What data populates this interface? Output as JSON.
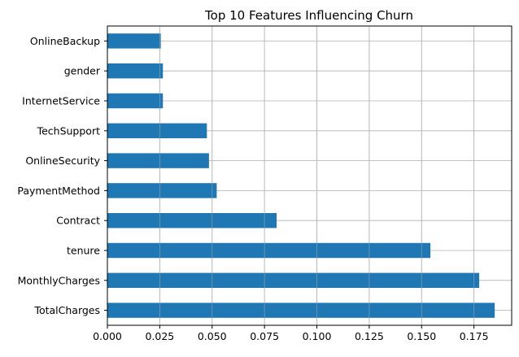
{
  "chart_data": {
    "type": "bar",
    "orientation": "horizontal",
    "title": "Top 10 Features Influencing Churn",
    "xlabel": "",
    "ylabel": "",
    "xlim": [
      0,
      0.193
    ],
    "grid": true,
    "categories": [
      "OnlineBackup",
      "gender",
      "InternetService",
      "TechSupport",
      "OnlineSecurity",
      "PaymentMethod",
      "Contract",
      "tenure",
      "MonthlyCharges",
      "TotalCharges"
    ],
    "values": [
      0.0255,
      0.0265,
      0.0265,
      0.0475,
      0.0485,
      0.0522,
      0.0808,
      0.1542,
      0.1775,
      0.1849
    ],
    "x_ticks": [
      0.0,
      0.025,
      0.05,
      0.075,
      0.1,
      0.125,
      0.15,
      0.175
    ],
    "x_tick_labels": [
      "0.000",
      "0.025",
      "0.050",
      "0.075",
      "0.100",
      "0.125",
      "0.150",
      "0.175"
    ],
    "bar_color": "#1f77b4",
    "grid_color": "#b0b0b0",
    "axis_color": "#000000"
  }
}
